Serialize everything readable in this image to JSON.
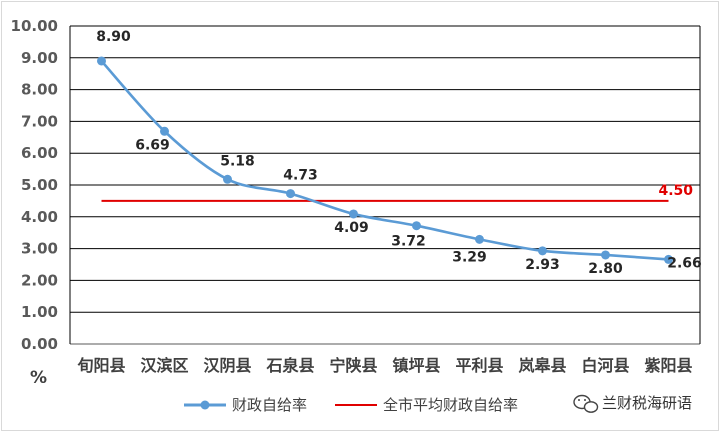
{
  "chart_data": {
    "type": "line",
    "categories": [
      "旬阳县",
      "汉滨区",
      "汉阴县",
      "石泉县",
      "宁陕县",
      "镇坪县",
      "平利县",
      "岚皋县",
      "白河县",
      "紫阳县"
    ],
    "series": [
      {
        "name": "财政自给率",
        "values": [
          8.9,
          6.69,
          5.18,
          4.73,
          4.09,
          3.72,
          3.29,
          2.93,
          2.8,
          2.66
        ],
        "labels": [
          "8.90",
          "6.69",
          "5.18",
          "4.73",
          "4.09",
          "3.72",
          "3.29",
          "2.93",
          "2.80",
          "2.66"
        ],
        "color": "#5b9bd5"
      },
      {
        "name": "全市平均财政自给率",
        "values": [
          4.5,
          4.5,
          4.5,
          4.5,
          4.5,
          4.5,
          4.5,
          4.5,
          4.5,
          4.5
        ],
        "end_label": "4.50",
        "color": "#e00000"
      }
    ],
    "ylim": [
      0,
      10
    ],
    "yticks": [
      "0.00",
      "1.00",
      "2.00",
      "3.00",
      "4.00",
      "5.00",
      "6.00",
      "7.00",
      "8.00",
      "9.00",
      "10.00"
    ],
    "ylabel": "%",
    "grid": true,
    "legend_position": "bottom"
  },
  "watermark": {
    "icon": "wechat-icon",
    "text": "兰财税海研语"
  }
}
